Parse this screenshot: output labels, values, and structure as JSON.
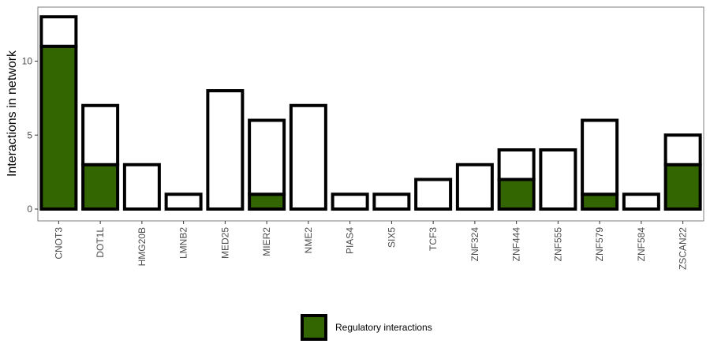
{
  "chart_data": {
    "type": "bar",
    "title": "",
    "xlabel": "",
    "ylabel": "Interactions in network",
    "ylim": [
      0,
      13.6
    ],
    "yticks": [
      0,
      5,
      10
    ],
    "grid": false,
    "legend_position": "bottom",
    "categories": [
      "CNOT3",
      "DOT1L",
      "HMG20B",
      "LMNB2",
      "MED25",
      "MIER2",
      "NME2",
      "PIAS4",
      "SIX5",
      "TCF3",
      "ZNF324",
      "ZNF444",
      "ZNF555",
      "ZNF579",
      "ZNF584",
      "ZSCAN22"
    ],
    "series": [
      {
        "name": "",
        "role": "total",
        "color": "#ffffff",
        "values": [
          13,
          7,
          3,
          1,
          8,
          6,
          7,
          1,
          1,
          2,
          3,
          4,
          4,
          6,
          1,
          5
        ]
      },
      {
        "name": "Regulatory interactions",
        "role": "regulatory",
        "color": "#336600",
        "values": [
          11,
          3,
          0,
          0,
          0,
          1,
          0,
          0,
          0,
          0,
          0,
          2,
          0,
          1,
          0,
          3
        ]
      }
    ],
    "legend": {
      "label": "Regulatory interactions",
      "color": "#336600"
    }
  }
}
